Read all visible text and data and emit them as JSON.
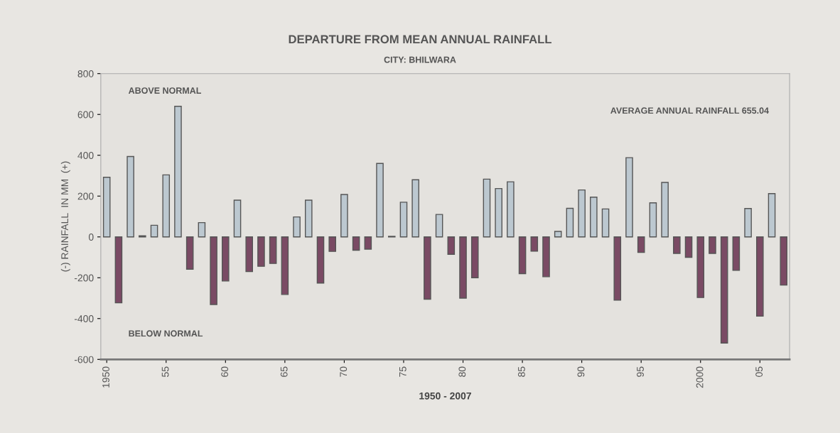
{
  "chart_data": {
    "type": "bar",
    "title": "DEPARTURE FROM MEAN ANNUAL RAINFALL",
    "subtitle": "CITY: BHILWARA",
    "xlabel": "1950 - 2007",
    "ylabel": "(-) RAINFALL  IN MM  (+)",
    "annotations": [
      "ABOVE NORMAL",
      "BELOW NORMAL",
      "AVERAGE ANNUAL RAINFALL 655.04"
    ],
    "x": [
      1950,
      1951,
      1952,
      1953,
      1954,
      1955,
      1956,
      1957,
      1958,
      1959,
      1960,
      1961,
      1962,
      1963,
      1964,
      1965,
      1966,
      1967,
      1968,
      1969,
      1970,
      1971,
      1972,
      1973,
      1974,
      1975,
      1976,
      1977,
      1978,
      1979,
      1980,
      1981,
      1982,
      1983,
      1984,
      1985,
      1986,
      1987,
      1988,
      1989,
      1990,
      1991,
      1992,
      1993,
      1994,
      1995,
      1996,
      1997,
      1998,
      1999,
      2000,
      2001,
      2002,
      2003,
      2004,
      2005,
      2006,
      2007
    ],
    "values": [
      292,
      -323,
      394,
      5,
      57,
      304,
      640,
      -158,
      70,
      -331,
      -216,
      180,
      -170,
      -144,
      -130,
      -282,
      98,
      180,
      -226,
      -71,
      208,
      -65,
      -60,
      360,
      3,
      170,
      280,
      -305,
      110,
      -85,
      -300,
      -200,
      283,
      237,
      270,
      -180,
      -70,
      -195,
      27,
      140,
      230,
      195,
      137,
      -310,
      388,
      -76,
      167,
      267,
      -81,
      -100,
      -297,
      -81,
      -520,
      -164,
      139,
      -388,
      212,
      -236
    ],
    "colors": [
      "#bcc8d0",
      "#7a4a64",
      "#bcc8d0",
      "#bcc8d0",
      "#bcc8d0",
      "#bcc8d0",
      "#bcc8d0",
      "#7a4a64",
      "#bcc8d0",
      "#7a4a64",
      "#7a4a64",
      "#bcc8d0",
      "#7a4a64",
      "#7a4a64",
      "#7a4a64",
      "#7a4a64",
      "#bcc8d0",
      "#bcc8d0",
      "#7a4a64",
      "#7a4a64",
      "#bcc8d0",
      "#7a4a64",
      "#7a4a64",
      "#bcc8d0",
      "#7a4a64",
      "#bcc8d0",
      "#bcc8d0",
      "#7a4a64",
      "#bcc8d0",
      "#7a4a64",
      "#7a4a64",
      "#7a4a64",
      "#bcc8d0",
      "#bcc8d0",
      "#bcc8d0",
      "#7a4a64",
      "#7a4a64",
      "#7a4a64",
      "#bcc8d0",
      "#bcc8d0",
      "#bcc8d0",
      "#bcc8d0",
      "#bcc8d0",
      "#7a4a64",
      "#bcc8d0",
      "#7a4a64",
      "#bcc8d0",
      "#bcc8d0",
      "#7a4a64",
      "#7a4a64",
      "#7a4a64",
      "#7a4a64",
      "#7a4a64",
      "#7a4a64",
      "#bcc8d0",
      "#7a4a64",
      "#bcc8d0",
      "#7a4a64"
    ],
    "xlim": [
      1949.5,
      2007.5
    ],
    "xticks": [
      1950,
      {
        "value": 1955,
        "label": "55"
      },
      {
        "value": 1960,
        "label": "60"
      },
      {
        "value": 1965,
        "label": "65"
      },
      {
        "value": 1970,
        "label": "70"
      },
      {
        "value": 1975,
        "label": "75"
      },
      {
        "value": 1980,
        "label": "80"
      },
      {
        "value": 1985,
        "label": "85"
      },
      {
        "value": 1990,
        "label": "90"
      },
      {
        "value": 1995,
        "label": "95"
      },
      2000,
      {
        "value": 2005,
        "label": "05"
      }
    ],
    "ylim": [
      -600,
      800
    ],
    "yticks": [
      -600,
      -400,
      -200,
      0,
      200,
      400,
      600,
      800
    ],
    "grid": false
  }
}
